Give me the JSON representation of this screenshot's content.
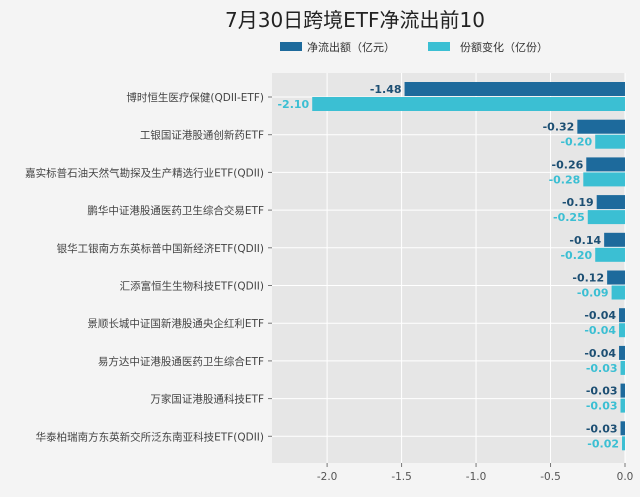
{
  "chart_data": {
    "type": "bar",
    "orientation": "horizontal",
    "title": "7月30日跨境ETF净流出前10",
    "categories": [
      "博时恒生医疗保健(QDII-ETF)",
      "工银国证港股通创新药ETF",
      "嘉实标普石油天然气勘探及生产精选行业ETF(QDII)",
      "鹏华中证港股通医药卫生综合交易ETF",
      "银华工银南方东英标普中国新经济ETF(QDII)",
      "汇添富恒生生物科技ETF(QDII)",
      "景顺长城中证国新港股通央企红利ETF",
      "易方达中证港股通医药卫生综合ETF",
      "万家国证港股通科技ETF",
      "华泰柏瑞南方东英新交所泛东南亚科技ETF(QDII)"
    ],
    "series": [
      {
        "name": "净流出额（亿元）",
        "color": "#1d6a9c",
        "labels": [
          "-1.48",
          "-0.32",
          "-0.26",
          "-0.19",
          "-0.14",
          "-0.12",
          "-0.04",
          "-0.04",
          "-0.03",
          "-0.03"
        ],
        "values": [
          -1.48,
          -0.32,
          -0.26,
          -0.19,
          -0.14,
          -0.12,
          -0.04,
          -0.04,
          -0.03,
          -0.03
        ]
      },
      {
        "name": "份额变化（亿份）",
        "color": "#3bbfd3",
        "labels": [
          "-2.10",
          "-0.20",
          "-0.28",
          "-0.25",
          "-0.20",
          "-0.09",
          "-0.04",
          "-0.03",
          "-0.03",
          "-0.02"
        ],
        "values": [
          -2.1,
          -0.2,
          -0.28,
          -0.25,
          -0.2,
          -0.09,
          -0.04,
          -0.03,
          -0.03,
          -0.02
        ]
      }
    ],
    "xticks": [
      "-2.0",
      "-1.5",
      "-1.0",
      "-0.5",
      "0.0"
    ],
    "xtick_values": [
      -2.0,
      -1.5,
      -1.0,
      -0.5,
      0.0
    ],
    "xlim": [
      -2.37,
      0.0
    ],
    "grid": true,
    "legend_position": "top"
  }
}
